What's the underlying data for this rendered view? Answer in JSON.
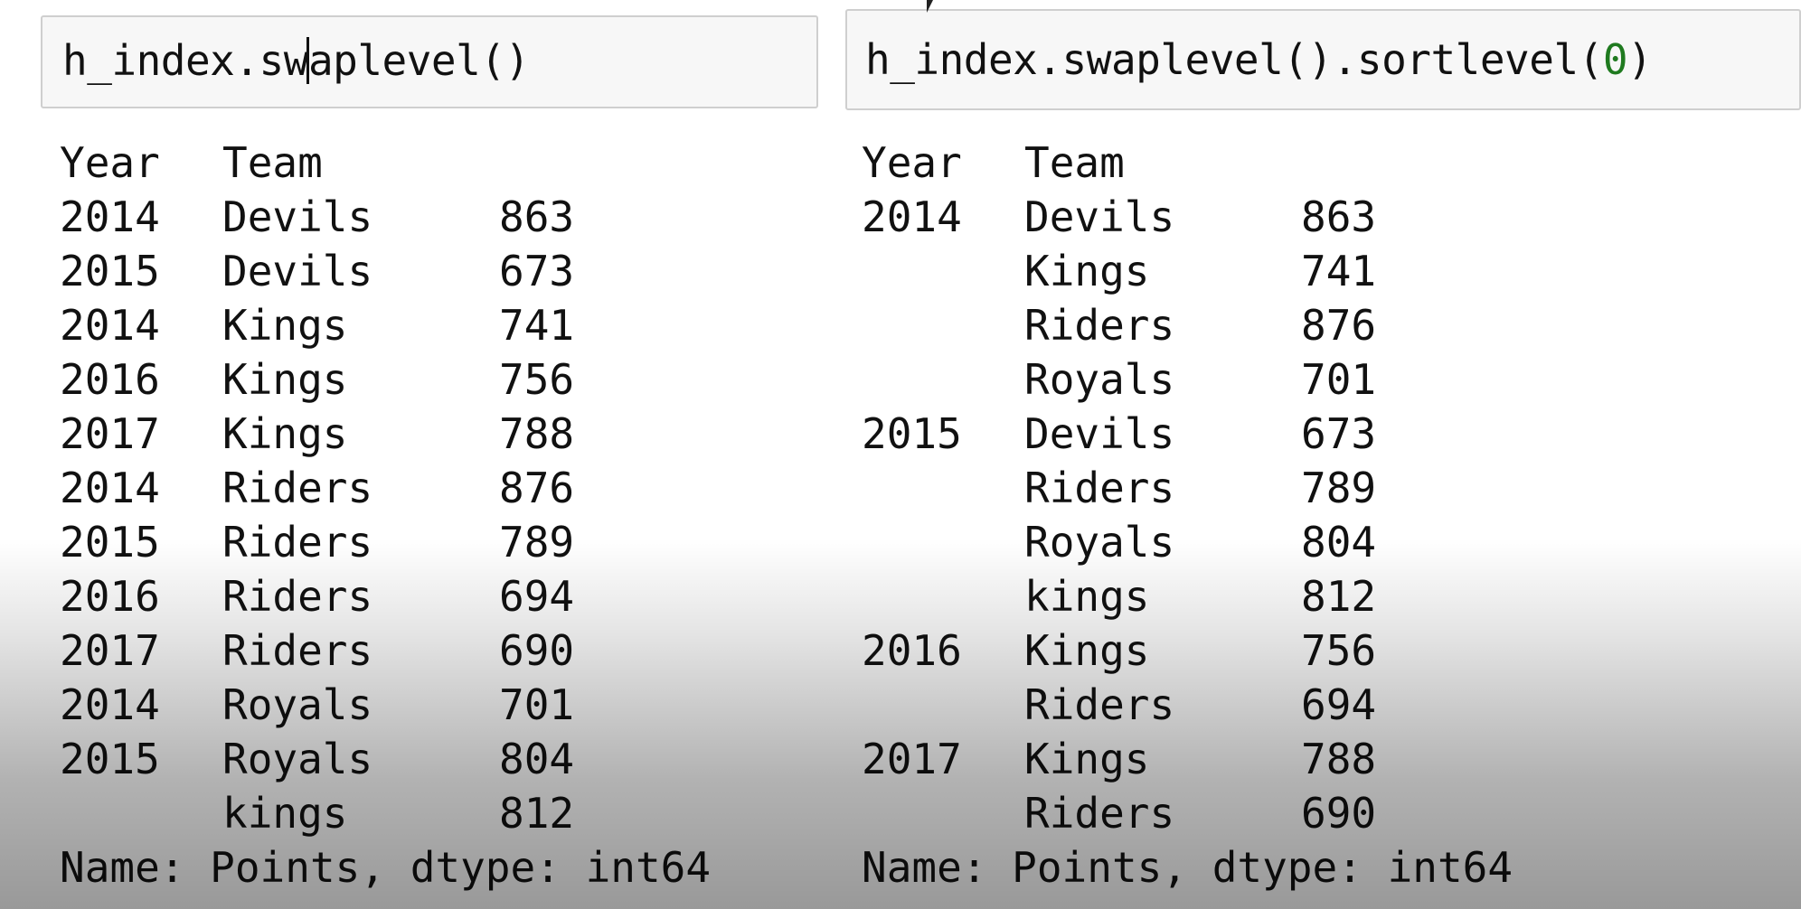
{
  "left": {
    "code": "h_index.swaplevel()",
    "code_before_caret": "h_index.sw",
    "code_after_caret": "aplevel()",
    "header": {
      "year": "Year",
      "team": "Team"
    },
    "rows": [
      {
        "year": "2014",
        "team": "Devils",
        "value": "863"
      },
      {
        "year": "2015",
        "team": "Devils",
        "value": "673"
      },
      {
        "year": "2014",
        "team": "Kings",
        "value": "741"
      },
      {
        "year": "2016",
        "team": "Kings",
        "value": "756"
      },
      {
        "year": "2017",
        "team": "Kings",
        "value": "788"
      },
      {
        "year": "2014",
        "team": "Riders",
        "value": "876"
      },
      {
        "year": "2015",
        "team": "Riders",
        "value": "789"
      },
      {
        "year": "2016",
        "team": "Riders",
        "value": "694"
      },
      {
        "year": "2017",
        "team": "Riders",
        "value": "690"
      },
      {
        "year": "2014",
        "team": "Royals",
        "value": "701"
      },
      {
        "year": "2015",
        "team": "Royals",
        "value": "804"
      },
      {
        "year": "",
        "team": "kings",
        "value": "812"
      }
    ],
    "footer": "Name: Points, dtype: int64"
  },
  "right": {
    "code_prefix": "h_index.swaplevel().sortlevel(",
    "code_arg": "0",
    "code_suffix": ")",
    "header": {
      "year": "Year",
      "team": "Team"
    },
    "rows": [
      {
        "year": "2014",
        "team": "Devils",
        "value": "863"
      },
      {
        "year": "",
        "team": "Kings",
        "value": "741"
      },
      {
        "year": "",
        "team": "Riders",
        "value": "876"
      },
      {
        "year": "",
        "team": "Royals",
        "value": "701"
      },
      {
        "year": "2015",
        "team": "Devils",
        "value": "673"
      },
      {
        "year": "",
        "team": "Riders",
        "value": "789"
      },
      {
        "year": "",
        "team": "Royals",
        "value": "804"
      },
      {
        "year": "",
        "team": "kings",
        "value": "812"
      },
      {
        "year": "2016",
        "team": "Kings",
        "value": "756"
      },
      {
        "year": "",
        "team": "Riders",
        "value": "694"
      },
      {
        "year": "2017",
        "team": "Kings",
        "value": "788"
      },
      {
        "year": "",
        "team": "Riders",
        "value": "690"
      }
    ],
    "footer": "Name: Points, dtype: int64"
  },
  "colors": {
    "code_bg": "#f7f7f7",
    "code_border": "#cfcfcf",
    "number_literal": "#1f7a1f"
  }
}
